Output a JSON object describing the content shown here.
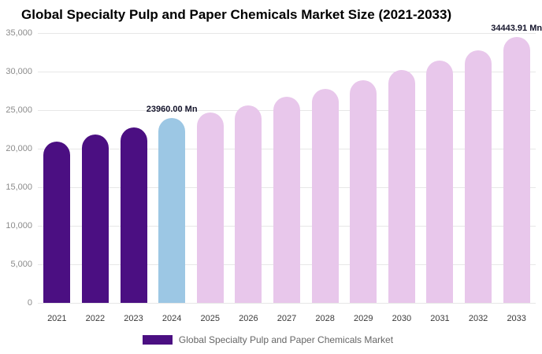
{
  "title": "Global Specialty Pulp and Paper Chemicals Market Size (2021-2033)",
  "legend": {
    "label": "Global Specialty Pulp and Paper Chemicals Market",
    "swatch_color": "#4B0F82"
  },
  "colors": {
    "bar_historical": "#4B0F82",
    "bar_current": "#9CC7E4",
    "bar_forecast": "#E8C7EB",
    "grid": "#e7e7e7",
    "axis_text": "#8b8b8b",
    "tick_text": "#3a3a3a",
    "value_label_text": "#14142b"
  },
  "chart_data": {
    "type": "bar",
    "title": "Global Specialty Pulp and Paper Chemicals Market Size (2021-2033)",
    "categories": [
      "2021",
      "2022",
      "2023",
      "2024",
      "2025",
      "2026",
      "2027",
      "2028",
      "2029",
      "2030",
      "2031",
      "2032",
      "2033"
    ],
    "values": [
      20900,
      21800,
      22800,
      23960,
      24700,
      25600,
      26700,
      27800,
      28900,
      30200,
      31400,
      32800,
      34443.91
    ],
    "unit": "Mn",
    "xlabel": "",
    "ylabel": "",
    "ylim": [
      0,
      35000
    ],
    "yticks": [
      0,
      5000,
      10000,
      15000,
      20000,
      25000,
      30000,
      35000
    ],
    "grid": true,
    "legend_position": "bottom",
    "bar_colors": [
      "#4B0F82",
      "#4B0F82",
      "#4B0F82",
      "#9CC7E4",
      "#E8C7EB",
      "#E8C7EB",
      "#E8C7EB",
      "#E8C7EB",
      "#E8C7EB",
      "#E8C7EB",
      "#E8C7EB",
      "#E8C7EB",
      "#E8C7EB"
    ],
    "data_labels": [
      {
        "index": 3,
        "text": "23960.00 Mn"
      },
      {
        "index": 12,
        "text": "34443.91 Mn"
      }
    ]
  }
}
